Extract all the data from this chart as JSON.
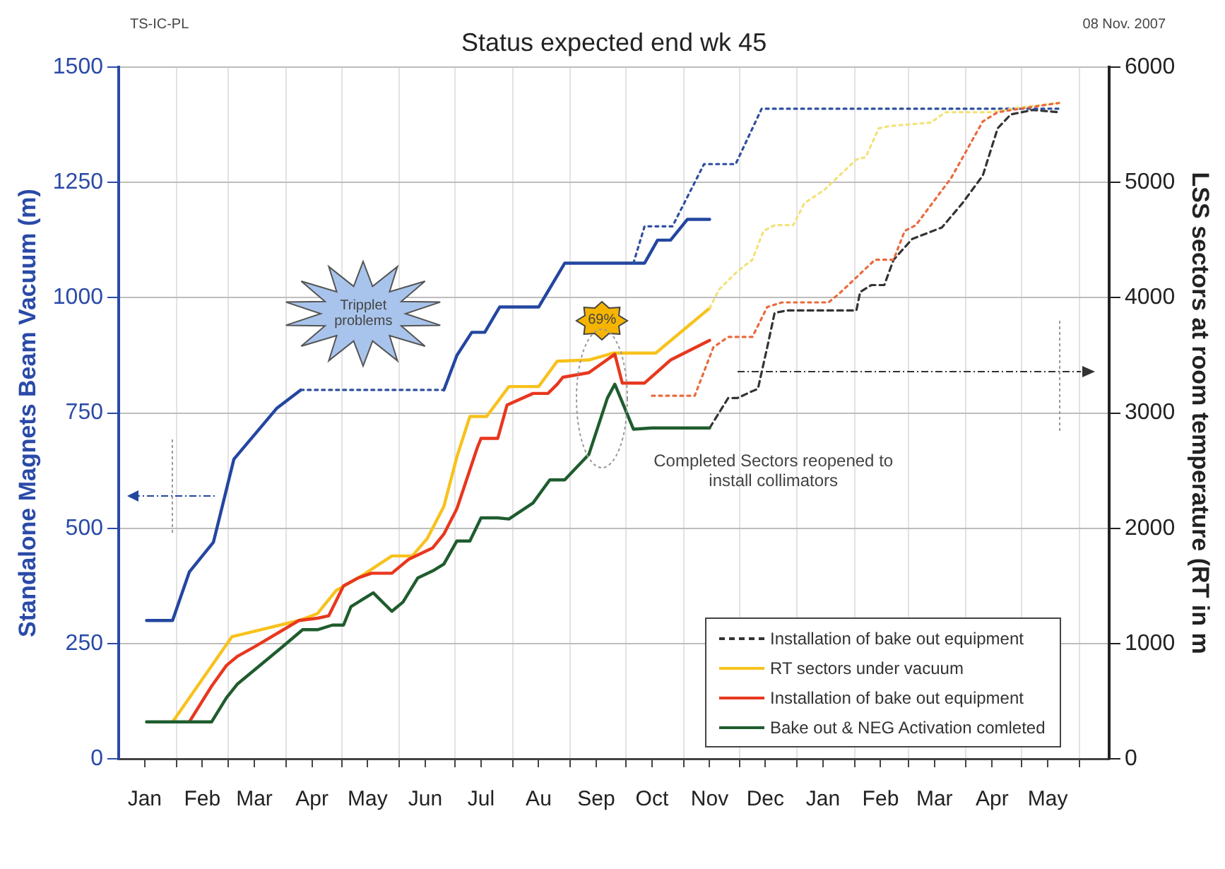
{
  "chart_data": {
    "type": "line",
    "title": "Status expected end wk 45",
    "ylabel": "Standalone Magnets Beam Vacuum (m)",
    "y2label": "LSS sectors at room temperature (RT in m",
    "xlim": [
      "2007-01-01",
      "2008-06-17"
    ],
    "xticks": [
      {
        "value": "2007-01-15",
        "label": "Jan"
      },
      {
        "value": "2007-02-15",
        "label": "Feb"
      },
      {
        "value": "2007-03-15",
        "label": "Mar"
      },
      {
        "value": "2007-04-15",
        "label": "Apr"
      },
      {
        "value": "2007-05-15",
        "label": "May"
      },
      {
        "value": "2007-06-15",
        "label": "Jun"
      },
      {
        "value": "2007-07-15",
        "label": "Jul"
      },
      {
        "value": "2007-08-15",
        "label": "Au"
      },
      {
        "value": "2007-09-15",
        "label": "Sep"
      },
      {
        "value": "2007-10-15",
        "label": "Oct"
      },
      {
        "value": "2007-11-15",
        "label": "Nov"
      },
      {
        "value": "2007-12-15",
        "label": "Dec"
      },
      {
        "value": "2008-01-15",
        "label": "Jan"
      },
      {
        "value": "2008-02-15",
        "label": "Feb"
      },
      {
        "value": "2008-03-15",
        "label": "Mar"
      },
      {
        "value": "2008-04-15",
        "label": "Apr"
      },
      {
        "value": "2008-05-15",
        "label": "May"
      },
      {
        "value": "2007-02-01",
        "label": null
      },
      {
        "value": "2007-03-01",
        "label": null
      },
      {
        "value": "2007-04-01",
        "label": null
      },
      {
        "value": "2007-05-01",
        "label": null
      },
      {
        "value": "2007-06-01",
        "label": null
      },
      {
        "value": "2007-07-01",
        "label": null
      },
      {
        "value": "2007-08-01",
        "label": null
      },
      {
        "value": "2007-09-01",
        "label": null
      },
      {
        "value": "2007-10-01",
        "label": null
      },
      {
        "value": "2007-11-01",
        "label": null
      },
      {
        "value": "2007-12-01",
        "label": null
      },
      {
        "value": "2008-01-01",
        "label": null
      },
      {
        "value": "2008-02-01",
        "label": null
      },
      {
        "value": "2008-03-01",
        "label": null
      },
      {
        "value": "2008-04-01",
        "label": null
      },
      {
        "value": "2008-05-01",
        "label": null
      },
      {
        "value": "2008-06-01",
        "label": null
      }
    ],
    "ylim": [
      0,
      1500
    ],
    "yticks": [
      0,
      250,
      500,
      750,
      1000,
      1250,
      1500
    ],
    "y2lim": [
      0,
      6000
    ],
    "y2ticks": [
      0,
      1000,
      2000,
      3000,
      4000,
      5000,
      6000
    ],
    "grid": true,
    "legend": "bottom right",
    "series": [
      {
        "name": "Installation of bake out equipment",
        "color": "#333333",
        "line_style": "dashed",
        "axis": "y2",
        "x": [
          "2007-11-15",
          "2007-11-25",
          "2007-11-30",
          "2007-12-08",
          "2007-12-11",
          "2007-12-16",
          "2007-12-20",
          "2007-12-27",
          "2008-02-02",
          "2008-02-04",
          "2008-02-10",
          "2008-02-17",
          "2008-02-22",
          "2008-03-03",
          "2008-03-19",
          "2008-03-30",
          "2008-04-10",
          "2008-04-18",
          "2008-04-25",
          "2008-05-07",
          "2008-05-21"
        ],
        "values": [
          2870,
          3130,
          3130,
          3190,
          3210,
          3570,
          3870,
          3890,
          3890,
          4050,
          4110,
          4110,
          4330,
          4510,
          4610,
          4820,
          5060,
          5470,
          5590,
          5630,
          5610
        ]
      },
      {
        "name": "RT sectors under vacuum",
        "color": "#f7c21c",
        "axis": "y2",
        "x": [
          "2007-01-30",
          "2007-03-03",
          "2007-03-11",
          "2007-04-08",
          "2007-04-18",
          "2007-04-28",
          "2007-05-12",
          "2007-05-28",
          "2007-06-08",
          "2007-06-16",
          "2007-06-25",
          "2007-07-02",
          "2007-07-09",
          "2007-07-18",
          "2007-07-30",
          "2007-08-15",
          "2007-08-25",
          "2007-09-11",
          "2007-09-24",
          "2007-10-17",
          "2007-11-15"
        ],
        "values": [
          320,
          1060,
          1090,
          1200,
          1260,
          1460,
          1590,
          1760,
          1760,
          1910,
          2190,
          2620,
          2970,
          2970,
          3230,
          3230,
          3450,
          3460,
          3520,
          3520,
          3910
        ]
      },
      {
        "name": "Installation of bake out equipment",
        "color": "#e8371e",
        "axis": "y2",
        "x": [
          "2007-02-08",
          "2007-02-20",
          "2007-02-28",
          "2007-03-06",
          "2007-03-16",
          "2007-04-08",
          "2007-04-18",
          "2007-04-24",
          "2007-05-02",
          "2007-05-10",
          "2007-05-17",
          "2007-05-28",
          "2007-06-06",
          "2007-06-19",
          "2007-06-25",
          "2007-07-02",
          "2007-07-13",
          "2007-07-15",
          "2007-07-24",
          "2007-07-29",
          "2007-08-12",
          "2007-08-20",
          "2007-08-25",
          "2007-08-28",
          "2007-09-11",
          "2007-09-25",
          "2007-09-29",
          "2007-10-11",
          "2007-10-25",
          "2007-11-15"
        ],
        "values": [
          320,
          630,
          810,
          890,
          980,
          1200,
          1220,
          1240,
          1500,
          1570,
          1610,
          1610,
          1730,
          1830,
          1950,
          2170,
          2700,
          2780,
          2780,
          3070,
          3170,
          3170,
          3250,
          3310,
          3350,
          3510,
          3260,
          3260,
          3460,
          3630
        ]
      },
      {
        "name": "Bake out & NEG Activation comleted",
        "color": "#1f5c2e",
        "axis": "y2",
        "x": [
          "2007-01-16",
          "2007-02-20",
          "2007-02-28",
          "2007-03-06",
          "2007-03-30",
          "2007-04-10",
          "2007-04-18",
          "2007-04-26",
          "2007-05-02",
          "2007-05-06",
          "2007-05-18",
          "2007-05-28",
          "2007-06-03",
          "2007-06-11",
          "2007-06-19",
          "2007-06-25",
          "2007-07-02",
          "2007-07-09",
          "2007-07-15",
          "2007-07-24",
          "2007-07-30",
          "2007-08-12",
          "2007-08-21",
          "2007-08-29",
          "2007-09-11",
          "2007-09-21",
          "2007-09-25",
          "2007-10-05",
          "2007-10-15",
          "2007-11-15"
        ],
        "values": [
          320,
          320,
          530,
          650,
          970,
          1120,
          1120,
          1160,
          1160,
          1320,
          1440,
          1280,
          1360,
          1570,
          1630,
          1690,
          1890,
          1890,
          2090,
          2090,
          2080,
          2220,
          2420,
          2420,
          2640,
          3130,
          3250,
          2860,
          2870,
          2870
        ]
      },
      {
        "color": "#2346a0",
        "x": [
          "2007-01-16",
          "2007-01-30",
          "2007-02-08",
          "2007-02-21",
          "2007-03-04",
          "2007-03-27",
          "2007-04-09",
          "2007-05-20",
          "2007-06-25",
          "2007-07-02",
          "2007-07-10",
          "2007-07-17",
          "2007-07-25",
          "2007-08-15",
          "2007-08-29",
          "2007-10-11",
          "2007-10-18",
          "2007-10-25",
          "2007-11-03",
          "2007-11-15"
        ],
        "values": [
          300,
          300,
          405,
          470,
          650,
          760,
          800,
          null,
          800,
          875,
          925,
          925,
          980,
          980,
          1075,
          1075,
          1125,
          1125,
          1170,
          1170
        ]
      },
      {
        "color": "#2e4f9e",
        "line_style": "dotted",
        "x": [
          "2007-04-09",
          "2007-06-25",
          "2007-08-13",
          "2007-10-05",
          "2007-10-11",
          "2007-10-26",
          "2007-11-12",
          "2007-11-29",
          "2007-12-13",
          "2008-05-21"
        ],
        "values": [
          800,
          800,
          null,
          1075,
          1155,
          1155,
          1290,
          1290,
          1410,
          1410
        ]
      },
      {
        "color": "#f3e27a",
        "line_style": "dotted",
        "axis": "y2",
        "x": [
          "2007-11-15",
          "2007-11-20",
          "2007-11-30",
          "2007-12-08",
          "2007-12-14",
          "2007-12-20",
          "2007-12-30",
          "2008-01-05",
          "2008-01-16",
          "2008-02-02",
          "2008-02-07",
          "2008-02-14",
          "2008-02-20",
          "2008-03-13",
          "2008-03-21",
          "2008-04-15",
          "2008-04-29",
          "2008-05-21"
        ],
        "values": [
          3910,
          4070,
          4230,
          4330,
          4580,
          4630,
          4630,
          4820,
          4940,
          5200,
          5220,
          5470,
          5490,
          5520,
          5610,
          5610,
          5650,
          5690
        ]
      },
      {
        "color": "#ea6a3e",
        "line_style": "dotted",
        "axis": "y2",
        "x": [
          "2007-10-15",
          "2007-11-07",
          "2007-11-17",
          "2007-11-25",
          "2007-12-08",
          "2007-12-16",
          "2007-12-24",
          "2008-01-18",
          "2008-01-24",
          "2008-02-12",
          "2008-02-22",
          "2008-02-28",
          "2008-03-05",
          "2008-03-24",
          "2008-04-10",
          "2008-04-18",
          "2008-05-04",
          "2008-05-21"
        ],
        "values": [
          3150,
          3150,
          3570,
          3660,
          3660,
          3920,
          3960,
          3960,
          4040,
          4330,
          4330,
          4580,
          4630,
          5040,
          5530,
          5610,
          5650,
          5690
        ]
      }
    ],
    "annotations": [
      "TS-IC-PL",
      "08 Nov. 2007",
      "Tripplet problems",
      "69%",
      "Completed Sectors reopened to install collimators"
    ]
  }
}
